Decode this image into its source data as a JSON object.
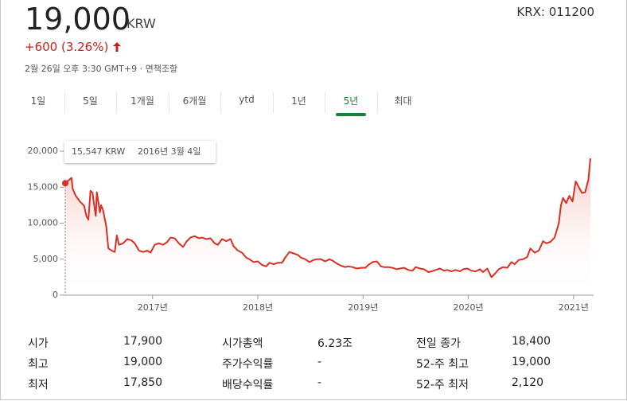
{
  "header": {
    "price": "19,000",
    "currency": "KRW",
    "ticker": "KRX: 011200",
    "change": "+600 (3.26%)",
    "timestamp": "2월 26일 오후 3:30 GMT+9 · 면책조항"
  },
  "tabs": [
    "1일",
    "5일",
    "1개월",
    "6개월",
    "ytd",
    "1년",
    "5년",
    "최대"
  ],
  "selected_tab": 6,
  "chart_data": {
    "type": "line",
    "color": "#d93025",
    "tooltip": {
      "value": "15,547 KRW",
      "date": "2016년 3월 4일"
    },
    "xlim": [
      2016.17,
      2021.16
    ],
    "xticks": [
      {
        "value": 2017,
        "label": "2017년"
      },
      {
        "value": 2018,
        "label": "2018년"
      },
      {
        "value": 2019,
        "label": "2019년"
      },
      {
        "value": 2020,
        "label": "2020년"
      },
      {
        "value": 2021,
        "label": "2021년"
      }
    ],
    "ylim": [
      0,
      20000
    ],
    "yticks": [
      0,
      {
        "value": 5000,
        "label": "5,000"
      },
      {
        "value": 10000,
        "label": "10,000"
      },
      {
        "value": 15000,
        "label": "15,000"
      },
      {
        "value": 20000,
        "label": "20,000"
      }
    ],
    "x": [
      2016.17,
      2016.23,
      2016.24,
      2016.27,
      2016.31,
      2016.35,
      2016.37,
      2016.39,
      2016.41,
      2016.43,
      2016.44,
      2016.46,
      2016.47,
      2016.5,
      2016.51,
      2016.53,
      2016.56,
      2016.58,
      2016.61,
      2016.64,
      2016.66,
      2016.68,
      2016.72,
      2016.76,
      2016.8,
      2016.83,
      2016.87,
      2016.91,
      2016.95,
      2016.98,
      2017.02,
      2017.06,
      2017.1,
      2017.14,
      2017.17,
      2017.21,
      2017.25,
      2017.29,
      2017.32,
      2017.36,
      2017.4,
      2017.44,
      2017.47,
      2017.51,
      2017.55,
      2017.59,
      2017.62,
      2017.66,
      2017.7,
      2017.74,
      2017.77,
      2017.81,
      2017.85,
      2017.89,
      2017.92,
      2017.96,
      2018.0,
      2018.04,
      2018.08,
      2018.11,
      2018.15,
      2018.19,
      2018.23,
      2018.26,
      2018.3,
      2018.34,
      2018.38,
      2018.41,
      2018.45,
      2018.49,
      2018.53,
      2018.56,
      2018.6,
      2018.64,
      2018.68,
      2018.71,
      2018.75,
      2018.79,
      2018.83,
      2018.86,
      2018.9,
      2018.94,
      2018.98,
      2019.02,
      2019.05,
      2019.09,
      2019.13,
      2019.17,
      2019.2,
      2019.24,
      2019.28,
      2019.32,
      2019.35,
      2019.39,
      2019.43,
      2019.47,
      2019.5,
      2019.54,
      2019.58,
      2019.62,
      2019.65,
      2019.69,
      2019.73,
      2019.77,
      2019.8,
      2019.84,
      2019.88,
      2019.92,
      2019.95,
      2019.99,
      2020.03,
      2020.07,
      2020.11,
      2020.14,
      2020.18,
      2020.22,
      2020.26,
      2020.29,
      2020.33,
      2020.37,
      2020.41,
      2020.44,
      2020.48,
      2020.52,
      2020.56,
      2020.59,
      2020.63,
      2020.67,
      2020.71,
      2020.74,
      2020.78,
      2020.82,
      2020.86,
      2020.88,
      2020.9,
      2020.93,
      2020.96,
      2020.99,
      2021.02,
      2021.05,
      2021.08,
      2021.11,
      2021.14,
      2021.16
    ],
    "values": [
      15547,
      16300,
      14800,
      13800,
      13000,
      12400,
      11000,
      10500,
      14500,
      14200,
      13000,
      11000,
      14300,
      11500,
      12500,
      11800,
      9500,
      6500,
      6200,
      6000,
      8300,
      7000,
      7200,
      7800,
      7600,
      7200,
      6200,
      6000,
      6200,
      5900,
      7000,
      7200,
      7000,
      7400,
      8000,
      7900,
      7200,
      6700,
      7400,
      8000,
      8200,
      7900,
      8000,
      7800,
      7900,
      7200,
      7000,
      7800,
      7500,
      7800,
      6800,
      6200,
      5900,
      5200,
      5000,
      4600,
      4700,
      4200,
      4000,
      4500,
      4300,
      4500,
      4500,
      5200,
      6000,
      5800,
      5600,
      5200,
      5000,
      4600,
      4900,
      5000,
      5000,
      4700,
      5000,
      4800,
      4400,
      4100,
      3900,
      4000,
      3900,
      3700,
      3800,
      3800,
      4200,
      4600,
      4700,
      4000,
      3900,
      3900,
      3800,
      3600,
      3700,
      3800,
      3500,
      3400,
      3900,
      3700,
      3600,
      3200,
      3300,
      3500,
      3700,
      3400,
      3500,
      3300,
      3500,
      3300,
      3600,
      3700,
      3400,
      3300,
      3600,
      3200,
      3700,
      2500,
      3100,
      3600,
      3900,
      3800,
      4600,
      4300,
      4900,
      5000,
      5300,
      6500,
      5900,
      6200,
      7500,
      7200,
      7400,
      8000,
      10000,
      12500,
      13500,
      12800,
      13800,
      13000,
      15800,
      15000,
      14200,
      14300,
      16000,
      19000
    ]
  },
  "stats": [
    [
      "시가",
      "17,900",
      "시가총액",
      "6.23조",
      "전일 종가",
      "18,400"
    ],
    [
      "최고",
      "19,000",
      "주가수익률",
      "-",
      "52-주 최고",
      "19,000"
    ],
    [
      "최저",
      "17,850",
      "배당수익률",
      "-",
      "52-주 최저",
      "2,120"
    ]
  ]
}
